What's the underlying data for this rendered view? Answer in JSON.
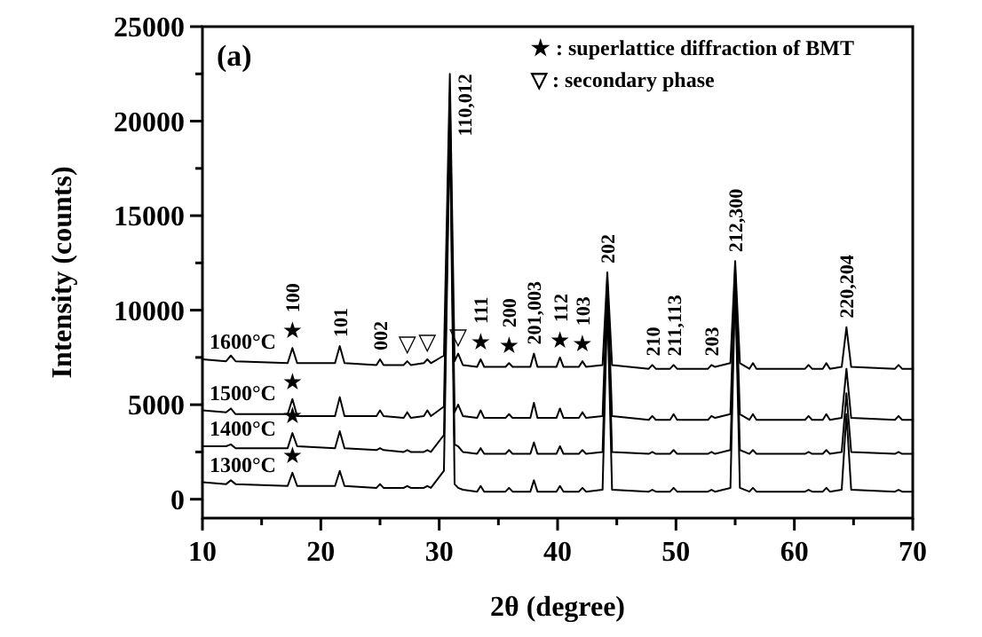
{
  "chart_data": {
    "type": "line",
    "xlabel": "2θ (degree)",
    "ylabel": "Intensity (counts)",
    "xlim": [
      10,
      70
    ],
    "ylim": [
      -1000,
      25000
    ],
    "xticks": [
      10,
      {
        "value": 15,
        "label": null
      },
      20,
      {
        "value": 25,
        "label": null
      },
      30,
      {
        "value": 35,
        "label": null
      },
      40,
      {
        "value": 45,
        "label": null
      },
      50,
      {
        "value": 55,
        "label": null
      },
      60,
      {
        "value": 65,
        "label": null
      },
      70
    ],
    "yticks": [
      0,
      {
        "value": 2500,
        "label": null
      },
      5000,
      {
        "value": 7500,
        "label": null
      },
      10000,
      {
        "value": 12500,
        "label": null
      },
      15000,
      {
        "value": 17500,
        "label": null
      },
      20000,
      {
        "value": 22500,
        "label": null
      },
      25000
    ],
    "grid": false,
    "marker": "none",
    "line_style": "solid",
    "x": [
      10,
      12,
      12.4,
      12.8,
      17.2,
      17.6,
      18.0,
      21.2,
      21.6,
      22.0,
      24.7,
      25.0,
      25.3,
      27.0,
      27.3,
      27.6,
      28.7,
      29.0,
      29.3,
      30.4,
      30.9,
      31.3,
      31.6,
      32.0,
      33.2,
      33.5,
      33.8,
      35.6,
      35.9,
      36.2,
      37.7,
      38.0,
      38.3,
      39.9,
      40.2,
      40.5,
      41.8,
      42.1,
      42.4,
      43.8,
      44.2,
      44.6,
      47.7,
      48.0,
      48.3,
      49.5,
      49.8,
      50.1,
      52.7,
      53.0,
      53.3,
      54.6,
      55.0,
      55.4,
      56.2,
      56.5,
      56.8,
      60.9,
      61.2,
      61.5,
      62.4,
      62.7,
      63.0,
      64.0,
      64.4,
      64.8,
      68.5,
      68.8,
      69.1,
      70
    ],
    "series": [
      {
        "name": "1300°C",
        "color": "#000000",
        "values": [
          900,
          800,
          1000,
          800,
          700,
          1400,
          700,
          700,
          1500,
          700,
          600,
          800,
          600,
          600,
          700,
          600,
          600,
          700,
          600,
          1500,
          20000,
          800,
          600,
          500,
          400,
          700,
          400,
          400,
          600,
          400,
          400,
          1000,
          400,
          400,
          700,
          400,
          400,
          600,
          400,
          500,
          10500,
          500,
          400,
          500,
          400,
          400,
          600,
          400,
          400,
          500,
          400,
          600,
          11500,
          600,
          400,
          600,
          400,
          400,
          500,
          400,
          400,
          600,
          400,
          500,
          4500,
          500,
          400,
          500,
          400,
          400
        ]
      },
      {
        "name": "1400°C",
        "color": "#000000",
        "values": [
          2800,
          2800,
          2900,
          2700,
          2700,
          3500,
          2800,
          2700,
          3600,
          2700,
          2600,
          2700,
          2600,
          2500,
          2600,
          2500,
          2500,
          2600,
          2500,
          3400,
          20500,
          2900,
          2800,
          2500,
          2400,
          2700,
          2400,
          2400,
          2600,
          2400,
          2400,
          3000,
          2400,
          2400,
          2800,
          2400,
          2400,
          2600,
          2400,
          2500,
          11000,
          2500,
          2400,
          2500,
          2400,
          2400,
          2600,
          2400,
          2400,
          2500,
          2400,
          2600,
          11800,
          2600,
          2400,
          2600,
          2400,
          2400,
          2500,
          2400,
          2400,
          2600,
          2400,
          2500,
          5600,
          2500,
          2400,
          2500,
          2400,
          2400
        ]
      },
      {
        "name": "1500°C",
        "color": "#000000",
        "values": [
          4700,
          4600,
          4800,
          4500,
          4500,
          5300,
          4400,
          4400,
          5400,
          4400,
          4400,
          4700,
          4400,
          4300,
          4600,
          4300,
          4400,
          4700,
          4400,
          4900,
          21500,
          4600,
          5000,
          4400,
          4300,
          4700,
          4300,
          4300,
          4500,
          4300,
          4300,
          5100,
          4300,
          4300,
          4800,
          4300,
          4300,
          4600,
          4300,
          4400,
          11500,
          4400,
          4200,
          4400,
          4200,
          4200,
          4500,
          4200,
          4200,
          4400,
          4300,
          4500,
          12200,
          4500,
          4200,
          4500,
          4200,
          4200,
          4400,
          4200,
          4200,
          4500,
          4200,
          4300,
          6900,
          4300,
          4200,
          4400,
          4200,
          4200
        ]
      },
      {
        "name": "1600°C",
        "color": "#000000",
        "values": [
          7400,
          7300,
          7600,
          7300,
          7200,
          8000,
          7200,
          7200,
          8100,
          7200,
          7100,
          7400,
          7100,
          7100,
          7300,
          7100,
          7200,
          7400,
          7200,
          7600,
          22500,
          7300,
          7700,
          7100,
          7000,
          7400,
          7000,
          7000,
          7200,
          7000,
          7000,
          7700,
          7000,
          7000,
          7500,
          7000,
          7000,
          7300,
          7000,
          7100,
          12000,
          7100,
          6900,
          7100,
          6900,
          6900,
          7100,
          6900,
          6900,
          7100,
          7000,
          7200,
          12600,
          7200,
          6900,
          7200,
          6900,
          6900,
          7100,
          6900,
          6900,
          7200,
          6900,
          7000,
          9100,
          7000,
          6900,
          7100,
          6900,
          6900
        ]
      }
    ],
    "annotations": [
      "(a)",
      "★ : superlattice diffraction of BMT",
      "▽ : secondary phase",
      {
        "text": "100",
        "x": 17.6,
        "y": 8000
      },
      {
        "text": "101",
        "x": 21.6,
        "y": 8100
      },
      {
        "text": "002",
        "x": 25.0,
        "y": 7400
      },
      {
        "text": "110,012",
        "x": 30.9,
        "y": 22500
      },
      {
        "text": "111",
        "x": 33.5,
        "y": 7400
      },
      {
        "text": "200",
        "x": 35.9,
        "y": 7200
      },
      {
        "text": "201,003",
        "x": 38.0,
        "y": 7700
      },
      {
        "text": "112",
        "x": 40.2,
        "y": 7500
      },
      {
        "text": "103",
        "x": 42.1,
        "y": 7300
      },
      {
        "text": "202",
        "x": 44.2,
        "y": 12000
      },
      {
        "text": "210",
        "x": 48.0,
        "y": 7100
      },
      {
        "text": "211,113",
        "x": 49.8,
        "y": 7100
      },
      {
        "text": "203",
        "x": 53.0,
        "y": 7100
      },
      {
        "text": "212,300",
        "x": 55.0,
        "y": 12600
      },
      {
        "text": "220,204",
        "x": 64.4,
        "y": 9100
      },
      {
        "text": "★",
        "x": 17.6,
        "y": 8000
      },
      {
        "text": "★",
        "x": 17.6,
        "y": 5300
      },
      {
        "text": "★",
        "x": 17.6,
        "y": 3500
      },
      {
        "text": "★",
        "x": 17.6,
        "y": 1400
      },
      {
        "text": "★",
        "x": 33.5,
        "y": 7400
      },
      {
        "text": "★",
        "x": 35.9,
        "y": 7200
      },
      {
        "text": "★",
        "x": 40.2,
        "y": 7500
      },
      {
        "text": "★",
        "x": 42.1,
        "y": 7300
      },
      {
        "text": "▽",
        "x": 27.3,
        "y": 7300
      },
      {
        "text": "▽",
        "x": 29.0,
        "y": 7400
      },
      {
        "text": "▽",
        "x": 31.6,
        "y": 7700
      }
    ]
  }
}
